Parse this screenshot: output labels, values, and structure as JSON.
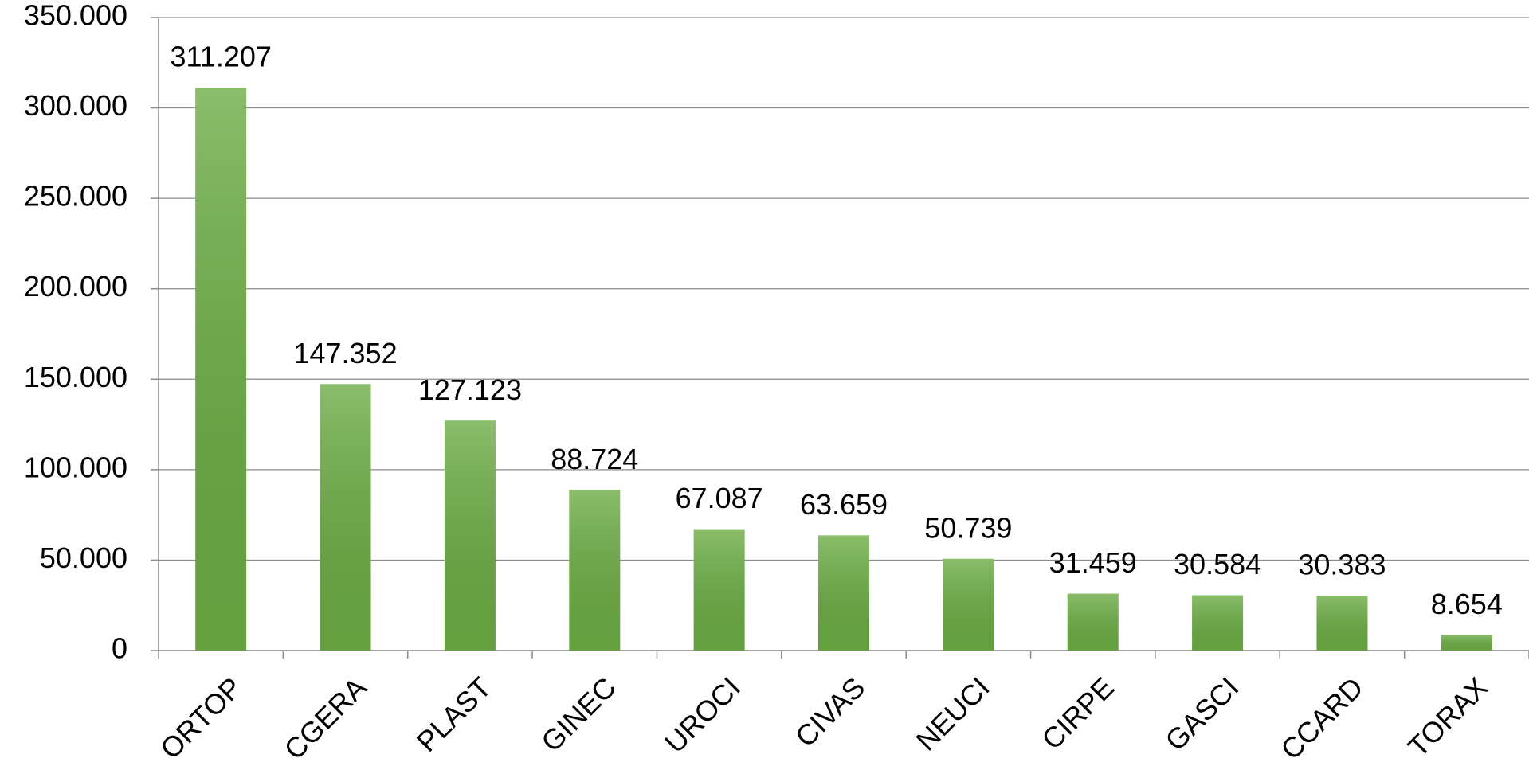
{
  "chart_data": {
    "type": "bar",
    "categories": [
      "ORTOP",
      "CGERA",
      "PLAST",
      "GINEC",
      "UROCI",
      "CIVAS",
      "NEUCI",
      "CIRPE",
      "GASCI",
      "CCARD",
      "TORAX"
    ],
    "values": [
      311207,
      147352,
      127123,
      88724,
      67087,
      63659,
      50739,
      31459,
      30584,
      30383,
      8654
    ],
    "value_labels": [
      "311.207",
      "147.352",
      "127.123",
      "88.724",
      "67.087",
      "63.659",
      "50.739",
      "31.459",
      "30.584",
      "30.383",
      "8.654"
    ],
    "color": "#6aab42",
    "ylim": [
      0,
      350000
    ],
    "yticks": [
      0,
      {
        "value": 50000,
        "label": "50.000"
      },
      {
        "value": 100000,
        "label": "100.000"
      },
      {
        "value": 150000,
        "label": "150.000"
      },
      {
        "value": 200000,
        "label": "200.000"
      },
      {
        "value": 250000,
        "label": "250.000"
      },
      {
        "value": 300000,
        "label": "300.000"
      },
      {
        "value": 350000,
        "label": "350.000"
      }
    ],
    "grid": true
  }
}
